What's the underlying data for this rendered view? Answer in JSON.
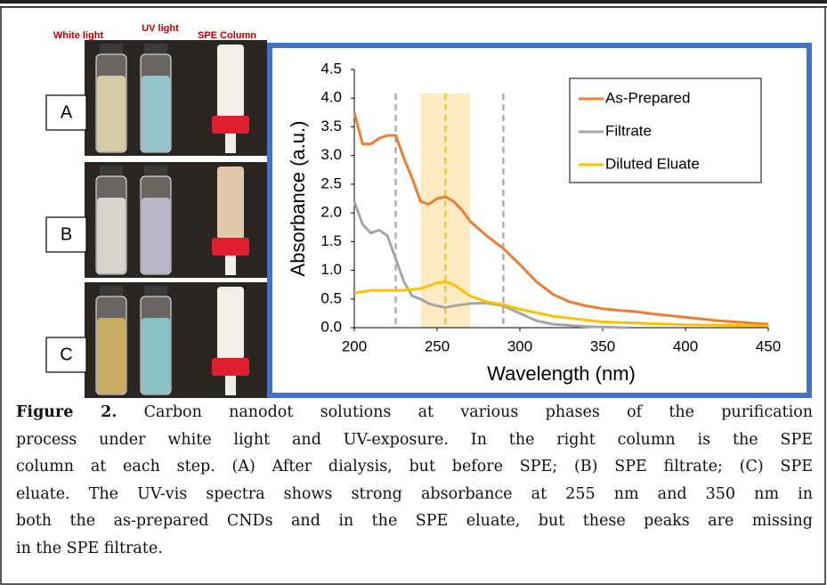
{
  "photo_panel": {
    "headers": [
      "White light",
      "UV light",
      "SPE Column"
    ],
    "rows": [
      "A",
      "B",
      "C"
    ]
  },
  "chart_data": {
    "type": "line",
    "y_label": "Absorbance (a.u.)",
    "x_label": "Wavelength (nm)",
    "xlim": [
      200,
      450
    ],
    "ylim": [
      0,
      4.5
    ],
    "xticks": [
      200,
      250,
      300,
      350,
      400,
      450
    ],
    "yticks": [
      {
        "value": 0,
        "label": "0.0"
      },
      0.5,
      {
        "value": 1,
        "label": "1.0"
      },
      1.5,
      {
        "value": 2,
        "label": "2.0"
      },
      2.5,
      {
        "value": 3,
        "label": "3.0"
      },
      3.5,
      {
        "value": 4,
        "label": "4.0"
      },
      4.5
    ],
    "reference_lines": [
      {
        "x": 225,
        "color": "#a6a6a6"
      },
      {
        "x": 255,
        "color": "#f5c518"
      },
      {
        "x": 290,
        "color": "#a6a6a6"
      }
    ],
    "band": {
      "x": [
        240,
        270
      ],
      "color": "#fdebc4"
    },
    "legend": "upper right",
    "series": [
      {
        "name": "As-Prepared",
        "color": "#ed7d31",
        "x": [
          200,
          205,
          210,
          215,
          220,
          225,
          230,
          235,
          240,
          245,
          250,
          255,
          260,
          265,
          270,
          280,
          290,
          300,
          310,
          320,
          330,
          340,
          350,
          360,
          370,
          380,
          400,
          420,
          450
        ],
        "values": [
          3.75,
          3.2,
          3.2,
          3.3,
          3.35,
          3.35,
          2.95,
          2.6,
          2.2,
          2.15,
          2.25,
          2.28,
          2.2,
          2.05,
          1.85,
          1.6,
          1.38,
          1.1,
          0.8,
          0.58,
          0.45,
          0.38,
          0.33,
          0.3,
          0.28,
          0.24,
          0.18,
          0.12,
          0.06
        ]
      },
      {
        "name": "Filtrate",
        "color": "#a5a5a5",
        "x": [
          200,
          205,
          210,
          215,
          220,
          225,
          230,
          235,
          240,
          245,
          250,
          255,
          260,
          270,
          280,
          290,
          300,
          310,
          320,
          340,
          365
        ],
        "values": [
          2.2,
          1.8,
          1.65,
          1.7,
          1.6,
          1.2,
          0.8,
          0.55,
          0.5,
          0.42,
          0.38,
          0.35,
          0.38,
          0.42,
          0.43,
          0.38,
          0.25,
          0.12,
          0.06,
          0.02,
          0
        ]
      },
      {
        "name": "Diluted Eluate",
        "color": "#ffc000",
        "x": [
          200,
          210,
          220,
          230,
          240,
          250,
          255,
          260,
          270,
          280,
          290,
          300,
          320,
          350,
          400,
          450
        ],
        "values": [
          0.6,
          0.65,
          0.65,
          0.65,
          0.68,
          0.78,
          0.8,
          0.75,
          0.55,
          0.45,
          0.4,
          0.32,
          0.2,
          0.1,
          0.05,
          0.03
        ]
      }
    ]
  },
  "caption": {
    "label": "Figure 2.",
    "lines": [
      " Carbon nanodot solutions at various phases of the purification",
      "process under white light and UV-exposure. In the right column is the SPE",
      "column at each step. (A) After dialysis, but before SPE; (B) SPE filtrate; (C) SPE",
      "eluate. The UV-vis spectra shows strong absorbance at 255 nm and 350 nm in",
      "both the as-prepared CNDs and in the SPE eluate, but these peaks are missing",
      "in the SPE filtrate."
    ]
  }
}
